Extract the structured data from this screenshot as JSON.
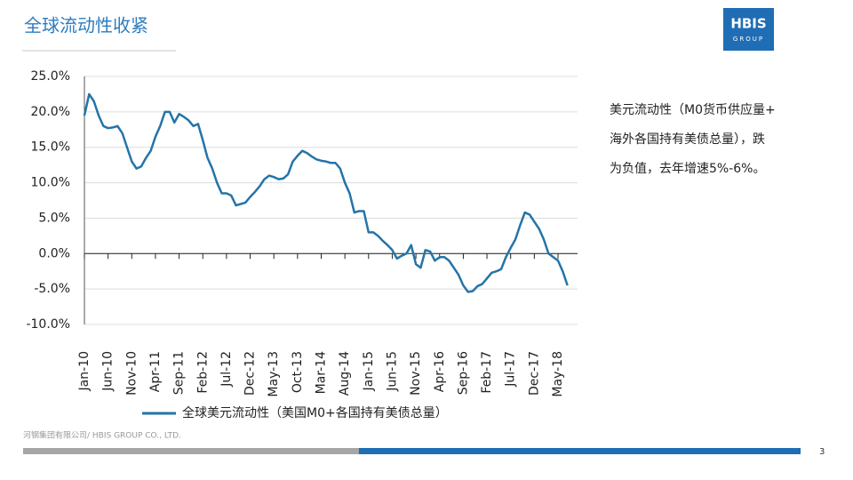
{
  "header": {
    "title": "全球流动性收紧"
  },
  "logo": {
    "name": "HBIS",
    "sub": "GROUP"
  },
  "note": [
    "美元流动性（M0货币供应量+",
    "海外各国持有美债总量），跌",
    "为负值，去年增速5%-6%。"
  ],
  "footer": "河钢集团有限公司/ HBIS GROUP CO., LTD.",
  "page_number": 3,
  "chart_data": {
    "type": "line",
    "categories": [
      "Jan-10",
      null,
      null,
      null,
      null,
      "Jun-10",
      null,
      null,
      null,
      null,
      "Nov-10",
      null,
      null,
      null,
      null,
      "Apr-11",
      null,
      null,
      null,
      null,
      "Sep-11",
      null,
      null,
      null,
      null,
      "Feb-12",
      null,
      null,
      null,
      null,
      "Jul-12",
      null,
      null,
      null,
      null,
      "Dec-12",
      null,
      null,
      null,
      null,
      "May-13",
      null,
      null,
      null,
      null,
      "Oct-13",
      null,
      null,
      null,
      null,
      "Mar-14",
      null,
      null,
      null,
      null,
      "Aug-14",
      null,
      null,
      null,
      null,
      "Jan-15",
      null,
      null,
      null,
      null,
      "Jun-15",
      null,
      null,
      null,
      null,
      "Nov-15",
      null,
      null,
      null,
      null,
      "Apr-16",
      null,
      null,
      null,
      null,
      "Sep-16",
      null,
      null,
      null,
      null,
      "Feb-17",
      null,
      null,
      null,
      null,
      "Jul-17",
      null,
      null,
      null,
      null,
      "Dec-17",
      null,
      null,
      null,
      null,
      "May-18",
      null,
      null
    ],
    "series": [
      {
        "name": "全球美元流动性（美国M0+各国持有美债总量）",
        "color": "#2474a8",
        "values": [
          19.5,
          22.5,
          21.5,
          19.5,
          18,
          17.7,
          17.8,
          18,
          17,
          15,
          13,
          12,
          12.3,
          13.5,
          14.5,
          16.5,
          18,
          20,
          20,
          18.5,
          19.7,
          19.3,
          18.8,
          18,
          18.3,
          16,
          13.5,
          12,
          10,
          8.5,
          8.5,
          8.2,
          6.8,
          7,
          7.2,
          8,
          8.7,
          9.5,
          10.5,
          11,
          10.8,
          10.5,
          10.6,
          11.2,
          13,
          13.8,
          14.5,
          14.2,
          13.7,
          13.3,
          13.1,
          13,
          12.8,
          12.8,
          12,
          10,
          8.5,
          5.8,
          6,
          6,
          3,
          3,
          2.5,
          1.8,
          1.2,
          0.5,
          -0.7,
          -0.3,
          0,
          1.2,
          -1.5,
          -2,
          0.5,
          0.3,
          -1,
          -0.5,
          -0.5,
          -1,
          -2,
          -3,
          -4.5,
          -5.4,
          -5.3,
          -4.6,
          -4.3,
          -3.5,
          -2.7,
          -2.5,
          -2.2,
          -0.5,
          0.8,
          2,
          4,
          5.8,
          5.5,
          4.5,
          3.5,
          2,
          0,
          -0.5,
          -1,
          -2.5,
          -4.5
        ]
      }
    ],
    "ylim": [
      -10,
      25
    ],
    "yticks": [
      {
        "value": -10,
        "label": "-10.0%"
      },
      {
        "value": -5,
        "label": "-5.0%"
      },
      {
        "value": 0,
        "label": "0.0%"
      },
      {
        "value": 5,
        "label": "5.0%"
      },
      {
        "value": 10,
        "label": "10.0%"
      },
      {
        "value": 15,
        "label": "15.0%"
      },
      {
        "value": 20,
        "label": "20.0%"
      },
      {
        "value": 25,
        "label": "25.0%"
      }
    ],
    "grid": true
  }
}
